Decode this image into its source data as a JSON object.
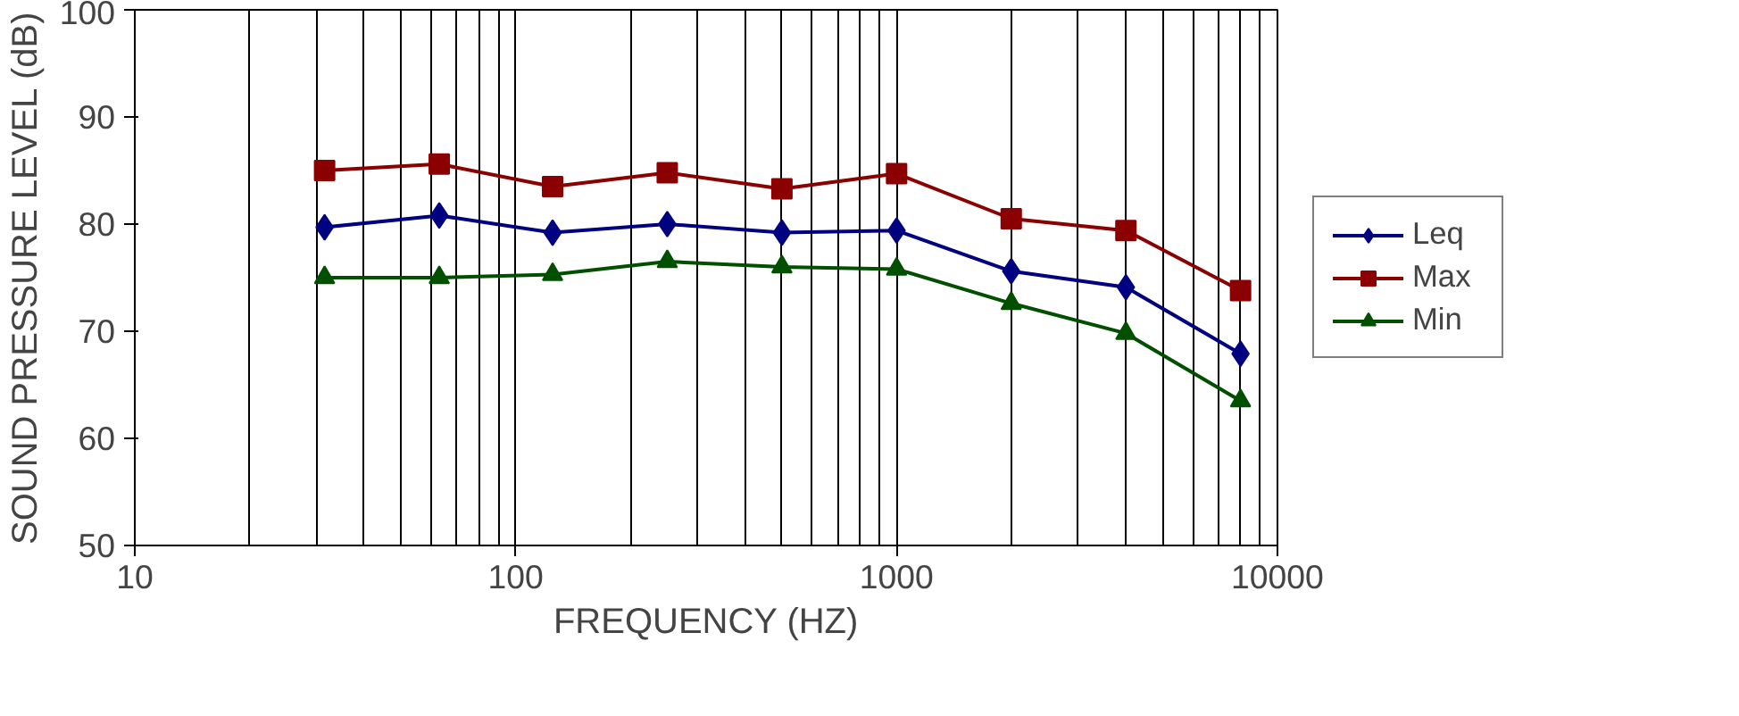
{
  "chart_data": {
    "type": "line",
    "xlabel": "FREQUENCY (HZ)",
    "ylabel": "SOUND PRESSURE LEVEL (dB)",
    "x": [
      31.5,
      63,
      125,
      250,
      500,
      1000,
      2000,
      4000,
      8000
    ],
    "series": [
      {
        "name": "Leq",
        "color": "#000080",
        "marker": "diamond",
        "values": [
          79.7,
          80.8,
          79.2,
          80.0,
          79.2,
          79.4,
          75.6,
          74.1,
          67.9
        ]
      },
      {
        "name": "Max",
        "color": "#8b0000",
        "marker": "square",
        "values": [
          85.0,
          85.6,
          83.5,
          84.8,
          83.3,
          84.7,
          80.5,
          79.4,
          73.8
        ]
      },
      {
        "name": "Min",
        "color": "#005000",
        "marker": "triangle",
        "values": [
          75.0,
          75.0,
          75.3,
          76.5,
          76.0,
          75.8,
          72.6,
          69.8,
          63.5
        ]
      }
    ],
    "log": "x",
    "xlim": [
      10,
      10000
    ],
    "xticks": [
      10,
      100,
      1000,
      10000
    ],
    "ylim": [
      50,
      100
    ],
    "yticks": [
      50,
      60,
      70,
      80,
      90,
      100
    ],
    "grid": "x",
    "legend": "right"
  }
}
